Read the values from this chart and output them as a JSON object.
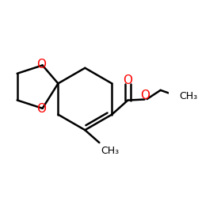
{
  "bg_color": "#ffffff",
  "bond_color": "#000000",
  "o_color": "#ff0000",
  "line_width": 1.8,
  "font_size_o": 11,
  "font_size_ch3": 9,
  "xlim": [
    0.0,
    1.0
  ],
  "ylim": [
    0.15,
    0.85
  ],
  "figsize": [
    2.5,
    2.5
  ],
  "dpi": 100
}
